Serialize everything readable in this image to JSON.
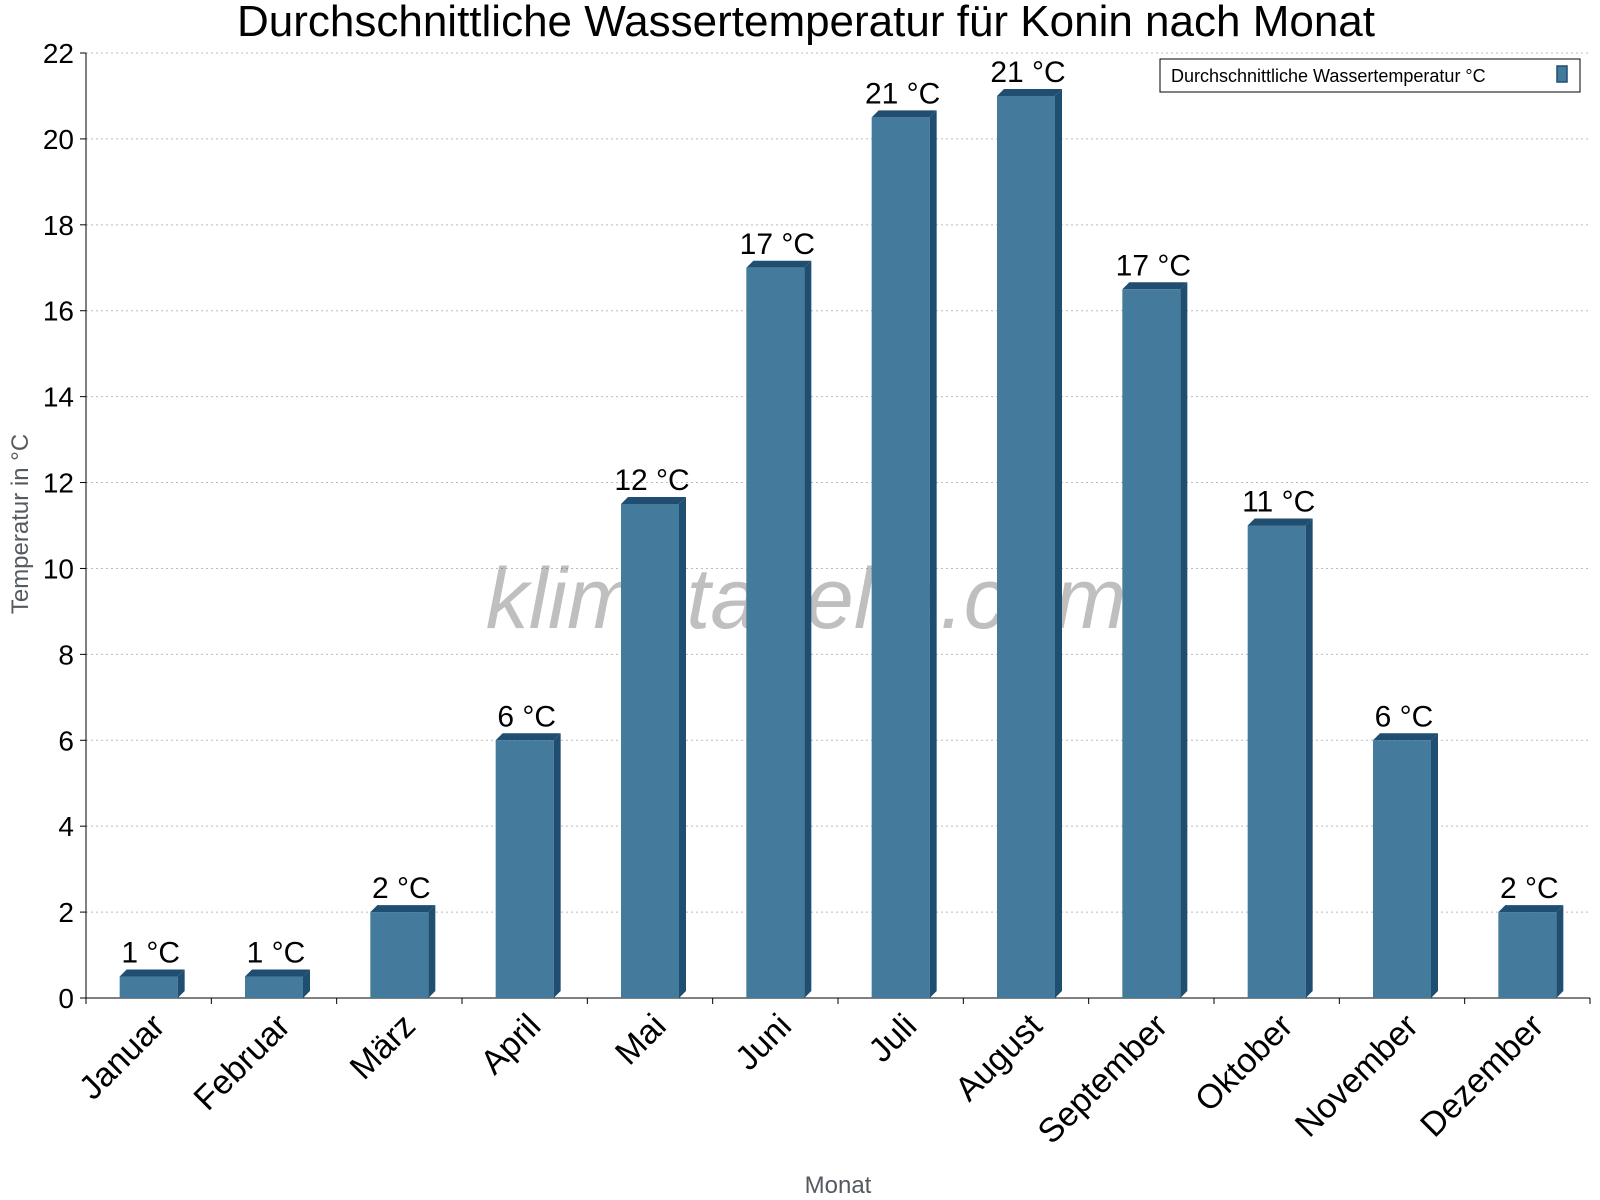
{
  "chart_data": {
    "type": "bar",
    "title": "Durchschnittliche Wassertemperatur für Konin nach Monat",
    "xlabel": "Monat",
    "ylabel": "Temperatur in °C",
    "ylim": [
      0,
      22
    ],
    "yticks": [
      0,
      2,
      4,
      6,
      8,
      10,
      12,
      14,
      16,
      18,
      20,
      22
    ],
    "grid": true,
    "legend_position": "top-right",
    "categories": [
      "Januar",
      "Februar",
      "März",
      "April",
      "Mai",
      "Juni",
      "Juli",
      "August",
      "September",
      "Oktober",
      "November",
      "Dezember"
    ],
    "series": [
      {
        "name": "Durchschnittliche Wassertemperatur °C",
        "color": "#447a9c",
        "values": [
          0.5,
          0.5,
          2,
          6,
          11.5,
          17,
          20.5,
          21,
          16.5,
          11,
          6,
          2
        ],
        "labels": [
          "1 °C",
          "1 °C",
          "2 °C",
          "6 °C",
          "12 °C",
          "17 °C",
          "21 °C",
          "21 °C",
          "17 °C",
          "11 °C",
          "6 °C",
          "2 °C"
        ]
      }
    ],
    "watermark": "klimatabelle.com",
    "colors": {
      "bar": "#447a9c",
      "bar_side": "#1f4e70",
      "grid": "#bbbbbb"
    }
  }
}
